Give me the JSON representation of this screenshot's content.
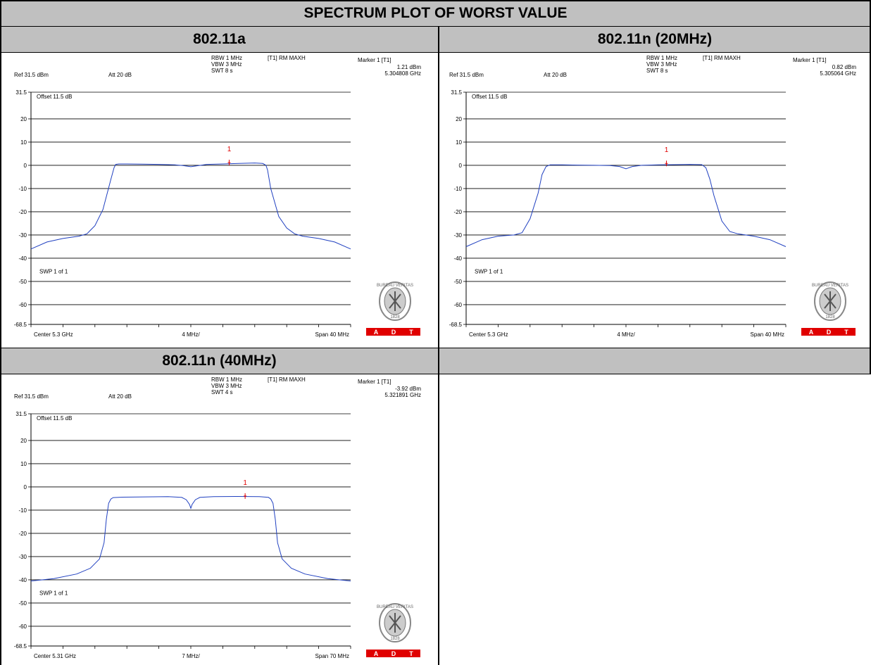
{
  "page": {
    "title": "SPECTRUM PLOT OF WORST VALUE",
    "empty_header": ""
  },
  "colors": {
    "header_bg": "#c0c0c0",
    "trace": "#2040c0",
    "marker": "#e00000",
    "badge": "#e00000"
  },
  "logo": {
    "ring_text": "BUREAU VERITAS",
    "year": "1828",
    "badge_letters": [
      "A",
      "D",
      "T"
    ]
  },
  "chart_data": [
    {
      "type": "line",
      "title": "802.11a",
      "settings": {
        "rbw": "RBW 1 MHz",
        "vbw": "VBW 3 MHz",
        "swt": "SWT 8 s",
        "trace_mode": "[T1] RM MAXH",
        "ref": "Ref 31.5 dBm",
        "att": "Att  20 dB",
        "offset": "Offset 11.5 dB",
        "sweep": "SWP 1 of 1",
        "center": "Center 5.3 GHz",
        "div": "4 MHz/",
        "span": "Span 40 MHz"
      },
      "marker": {
        "label": "Marker 1 [T1]",
        "level": "1.21 dBm",
        "freq": "5.304808 GHz",
        "id": "1",
        "x_mhz": 4.8,
        "y_dbm": 1.21
      },
      "y_axis": {
        "ticks": [
          31.5,
          20,
          10,
          0,
          -10,
          -20,
          -30,
          -40,
          -50,
          -60,
          -68.5
        ],
        "tick_labels": [
          "31.5",
          "20",
          "10",
          "0",
          "-10",
          "-20",
          "-30",
          "-40",
          "-50",
          "-60",
          "-68.5"
        ]
      },
      "xlim_mhz": [
        -20,
        20
      ],
      "ylim": [
        -68.5,
        31.5
      ],
      "series": [
        {
          "x": [
            -20,
            -18,
            -16,
            -14,
            -13,
            -12,
            -11,
            -10,
            -9.6,
            -9.4,
            -9,
            -8,
            -6,
            -4,
            -2,
            -1,
            0,
            1,
            2,
            4,
            6,
            8,
            9,
            9.4,
            9.6,
            10,
            11,
            12,
            13,
            14,
            16,
            18,
            20
          ],
          "y": [
            -36,
            -33,
            -31.5,
            -30.5,
            -29.5,
            -26,
            -19,
            -6,
            -1,
            0.4,
            0.6,
            0.6,
            0.5,
            0.4,
            0.2,
            -0.1,
            -0.6,
            -0.1,
            0.4,
            0.6,
            0.8,
            1.0,
            0.8,
            0,
            -2,
            -10,
            -22,
            -27,
            -29.5,
            -30.5,
            -31.5,
            -33,
            -36
          ]
        }
      ]
    },
    {
      "type": "line",
      "title": "802.11n (20MHz)",
      "settings": {
        "rbw": "RBW 1 MHz",
        "vbw": "VBW 3 MHz",
        "swt": "SWT 8 s",
        "trace_mode": "[T1] RM MAXH",
        "ref": "Ref 31.5 dBm",
        "att": "Att  20 dB",
        "offset": "Offset 11.5 dB",
        "sweep": "SWP 1 of 1",
        "center": "Center 5.3 GHz",
        "div": "4 MHz/",
        "span": "Span 40 MHz"
      },
      "marker": {
        "label": "Marker 1 [T1]",
        "level": "0.82 dBm",
        "freq": "5.305064 GHz",
        "id": "1",
        "x_mhz": 5.064,
        "y_dbm": 0.82
      },
      "y_axis": {
        "ticks": [
          31.5,
          20,
          10,
          0,
          -10,
          -20,
          -30,
          -40,
          -50,
          -60,
          -68.5
        ],
        "tick_labels": [
          "31.5",
          "20",
          "10",
          "0",
          "-10",
          "-20",
          "-30",
          "-40",
          "-50",
          "-60",
          "-68.5"
        ]
      },
      "xlim_mhz": [
        -20,
        20
      ],
      "ylim": [
        -68.5,
        31.5
      ],
      "series": [
        {
          "x": [
            -20,
            -18,
            -16,
            -14,
            -13,
            -12,
            -11,
            -10.5,
            -10,
            -9.5,
            -8,
            -6,
            -4,
            -2,
            -0.8,
            0,
            0.8,
            2,
            4,
            6,
            8,
            9.5,
            10,
            10.5,
            11,
            12,
            13,
            14,
            16,
            18,
            20
          ],
          "y": [
            -35,
            -32,
            -30.5,
            -30,
            -29,
            -23,
            -12,
            -4,
            -0.5,
            0.2,
            0.2,
            0.1,
            0,
            -0.1,
            -0.5,
            -1.5,
            -0.5,
            0,
            0.2,
            0.3,
            0.4,
            0.3,
            -1,
            -6,
            -13,
            -24,
            -28.5,
            -29.5,
            -30.5,
            -32,
            -35
          ]
        }
      ]
    },
    {
      "type": "line",
      "title": "802.11n (40MHz)",
      "settings": {
        "rbw": "RBW 1 MHz",
        "vbw": "VBW 3 MHz",
        "swt": "SWT 4 s",
        "trace_mode": "[T1] RM MAXH",
        "ref": "Ref 31.5 dBm",
        "att": "Att  20 dB",
        "offset": "Offset 11.5 dB",
        "sweep": "SWP 1 of 1",
        "center": "Center 5.31 GHz",
        "div": "7 MHz/",
        "span": "Span 70 MHz"
      },
      "marker": {
        "label": "Marker 1 [T1]",
        "level": "-3.92 dBm",
        "freq": "5.321891 GHz",
        "id": "1",
        "x_mhz": 11.891,
        "y_dbm": -3.92
      },
      "y_axis": {
        "ticks": [
          31.5,
          20,
          10,
          0,
          -10,
          -20,
          -30,
          -40,
          -50,
          -60,
          -68.5
        ],
        "tick_labels": [
          "31.5",
          "20",
          "10",
          "0",
          "-10",
          "-20",
          "-30",
          "-40",
          "-50",
          "-60",
          "-68.5"
        ]
      },
      "xlim_mhz": [
        -35,
        35
      ],
      "ylim": [
        -68.5,
        31.5
      ],
      "series": [
        {
          "x": [
            -35,
            -30,
            -25,
            -22,
            -20,
            -19,
            -18.5,
            -18,
            -17.5,
            -17,
            -15,
            -10,
            -5,
            -2,
            -1,
            -0.3,
            0,
            0.3,
            1,
            2,
            5,
            10,
            15,
            17,
            17.5,
            18,
            18.5,
            19,
            20,
            22,
            25,
            30,
            35
          ],
          "y": [
            -40.5,
            -39.5,
            -37.5,
            -35,
            -31,
            -24,
            -14,
            -7,
            -5.2,
            -4.6,
            -4.4,
            -4.3,
            -4.2,
            -4.5,
            -5.5,
            -7.5,
            -9.2,
            -7.5,
            -5.5,
            -4.5,
            -4.2,
            -4.1,
            -4.2,
            -4.5,
            -5.2,
            -7,
            -14,
            -24,
            -31,
            -35,
            -37.5,
            -39.5,
            -40.5
          ]
        }
      ]
    }
  ]
}
